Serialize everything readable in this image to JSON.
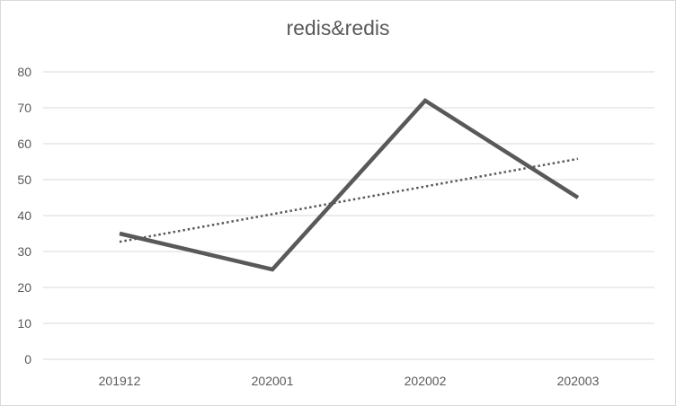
{
  "chart_data": {
    "type": "line",
    "title": "redis&redis",
    "categories": [
      "201912",
      "202001",
      "202002",
      "202003"
    ],
    "series": [
      {
        "values": [
          35,
          25,
          72,
          45
        ],
        "color": "#595959"
      }
    ],
    "trendline": {
      "type": "linear",
      "style": "dotted",
      "color": "#595959"
    },
    "ylim": [
      0,
      80
    ],
    "yticks": [
      0,
      10,
      20,
      30,
      40,
      50,
      60,
      70,
      80
    ],
    "grid": true,
    "legend": "none"
  }
}
